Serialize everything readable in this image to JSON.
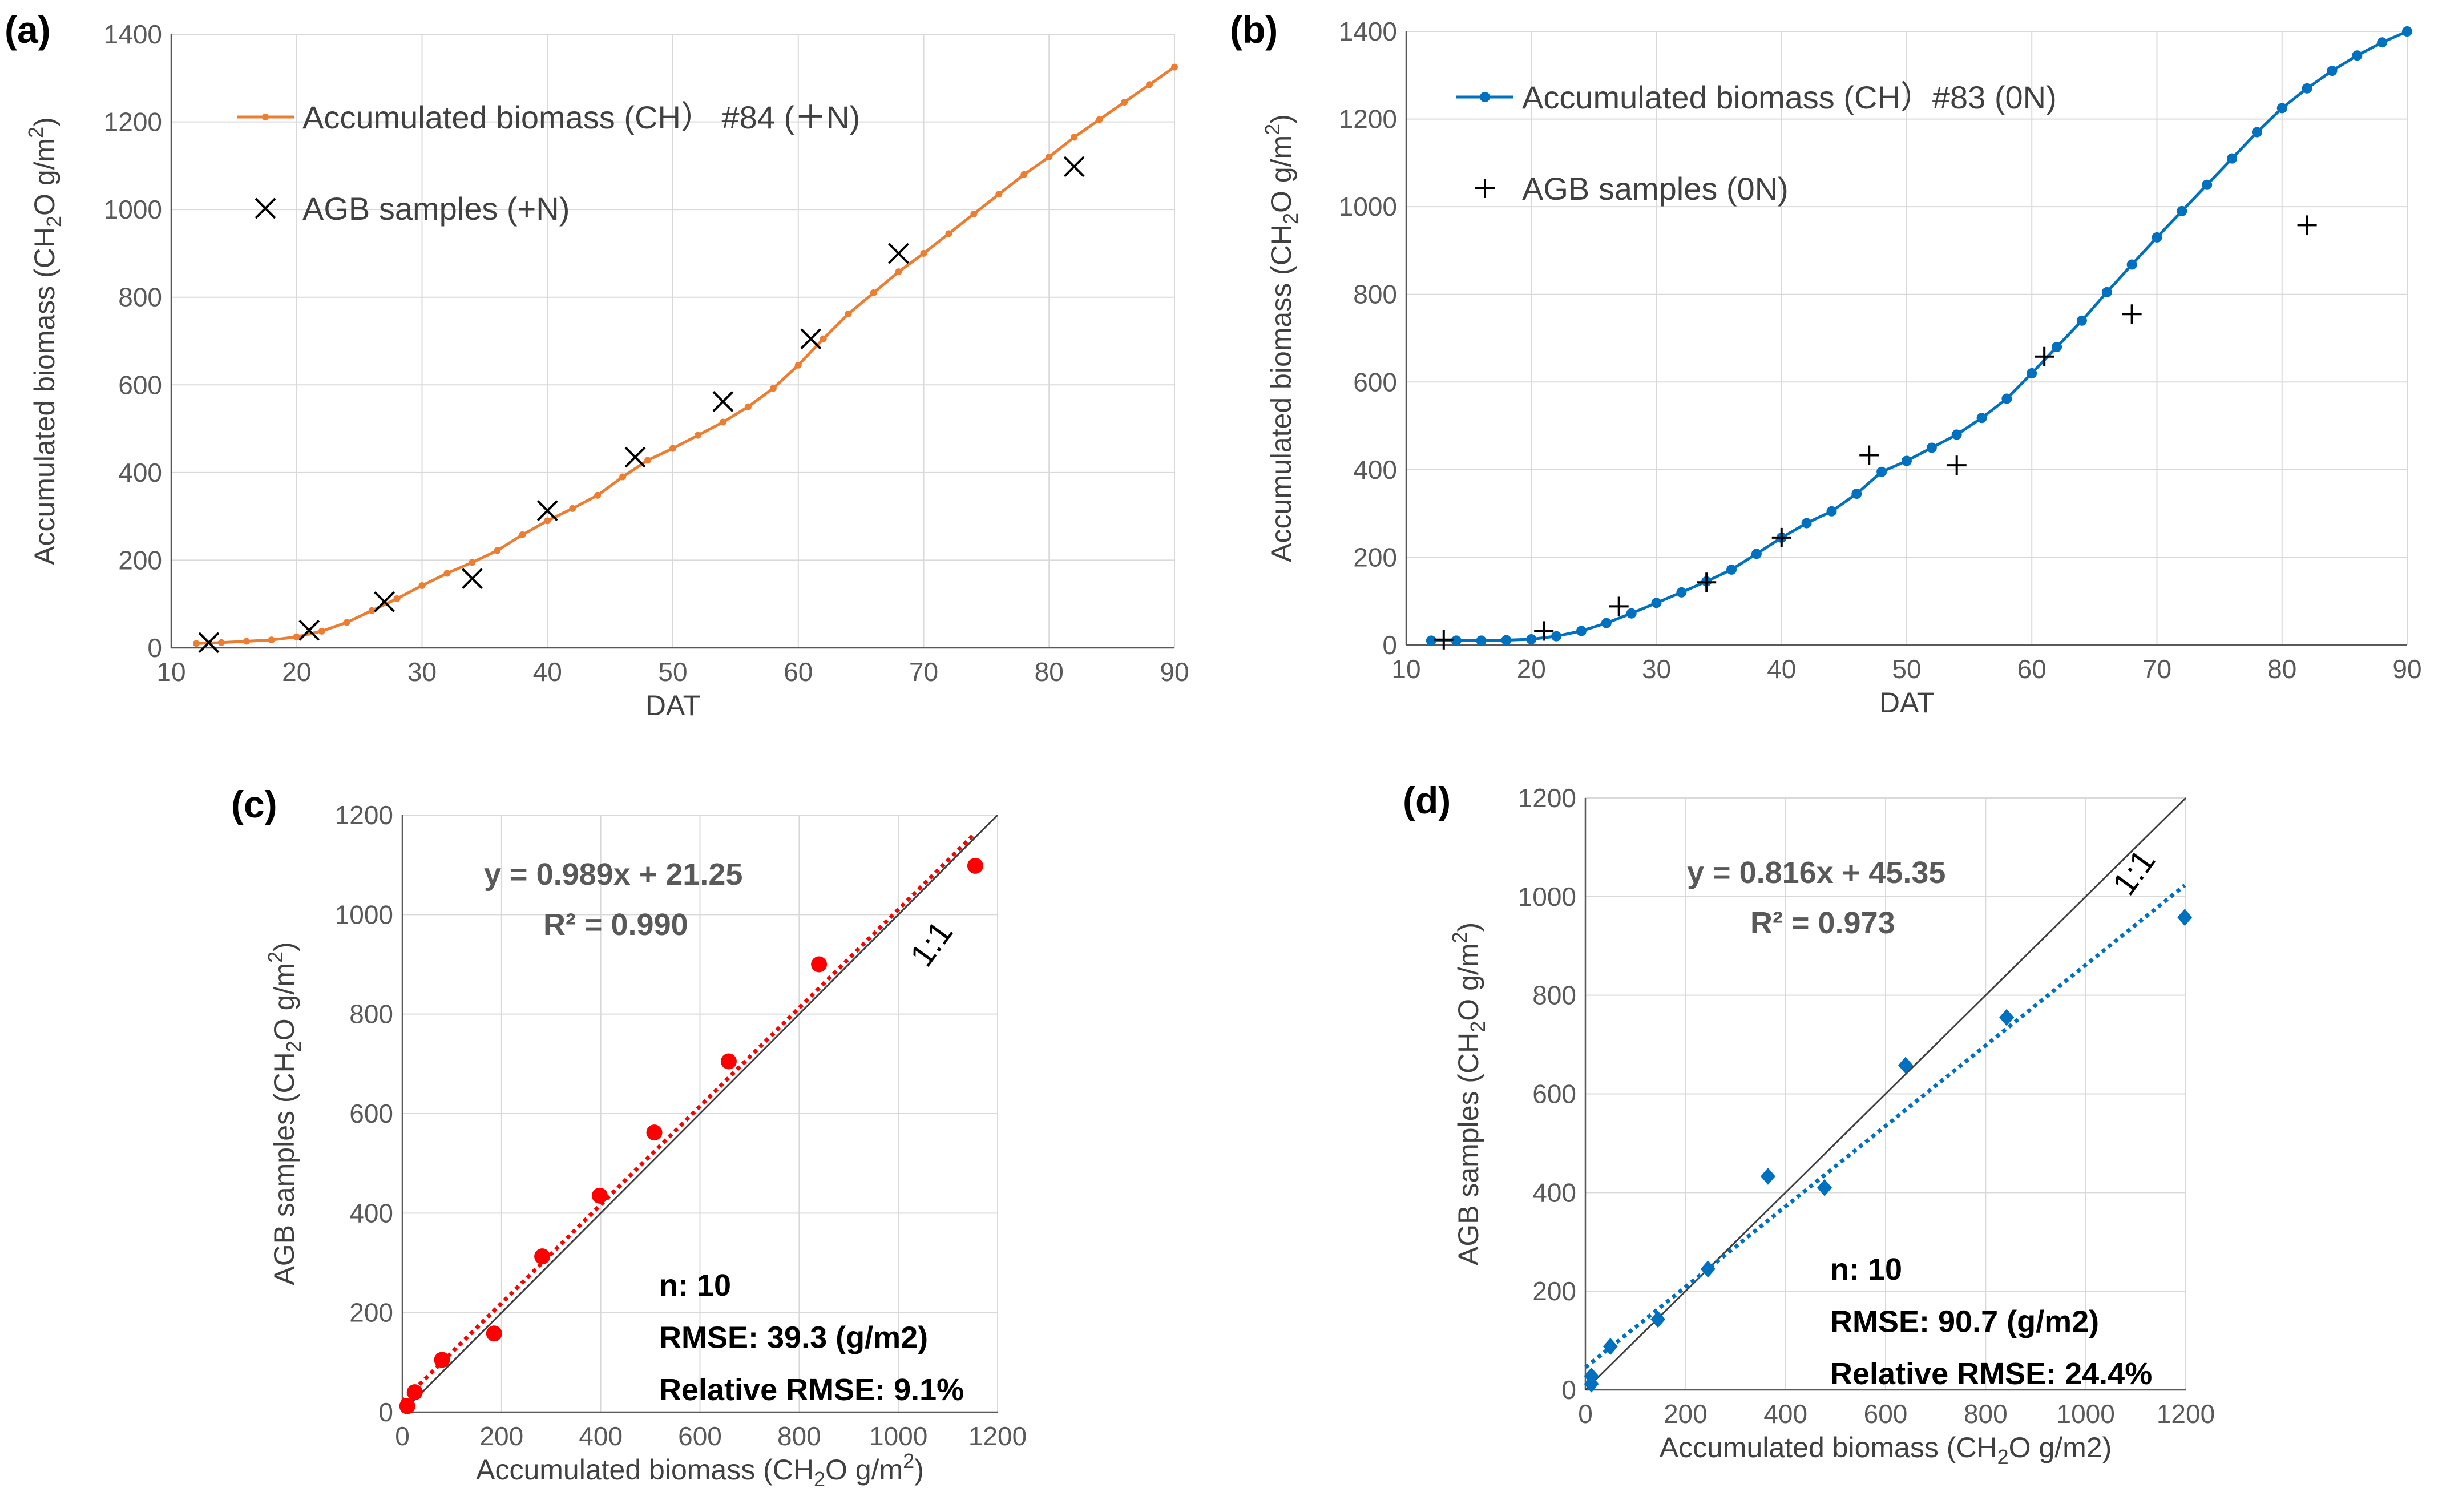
{
  "colors": {
    "orange": "#ED7D31",
    "blue": "#0070C0",
    "red": "#FF0000",
    "grid": "#D9D9D9",
    "axis": "#595959",
    "one_to_one": "#404040",
    "marker_black": "#000000"
  },
  "chart_data": [
    {
      "id": "a",
      "type": "line",
      "panel_label": "(a)",
      "xlabel": "DAT",
      "ylabel": "Accumulated biomass (CH2O g/m2)",
      "ylabel_parts": {
        "main": "Accumulated biomass (CH",
        "sub": "2",
        "mid": "O g/m",
        "sup": "2",
        "end": ")"
      },
      "xlim": [
        10,
        90
      ],
      "ylim": [
        0,
        1400
      ],
      "xticks": [
        10,
        20,
        30,
        40,
        50,
        60,
        70,
        80,
        90
      ],
      "yticks": [
        0,
        200,
        400,
        600,
        800,
        1000,
        1200,
        1400
      ],
      "grid": true,
      "legend_position": "top-left",
      "series": [
        {
          "name": "Accumulated biomass (CH） #84 (＋N)",
          "kind": "line-markers",
          "color": "#ED7D31",
          "x": [
            12,
            14,
            16,
            18,
            20,
            22,
            24,
            26,
            28,
            30,
            32,
            34,
            36,
            38,
            40,
            42,
            44,
            46,
            48,
            50,
            52,
            54,
            56,
            58,
            60,
            62,
            64,
            66,
            68,
            70,
            72,
            74,
            76,
            78,
            80,
            82,
            84,
            86,
            88,
            90
          ],
          "y": [
            10,
            12,
            15,
            18,
            25,
            38,
            58,
            85,
            112,
            142,
            170,
            195,
            222,
            258,
            290,
            318,
            348,
            390,
            428,
            455,
            485,
            515,
            550,
            592,
            645,
            705,
            762,
            810,
            858,
            900,
            945,
            990,
            1035,
            1080,
            1120,
            1165,
            1205,
            1245,
            1285,
            1325
          ]
        },
        {
          "name": "AGB  samples (+N)",
          "kind": "x-markers",
          "color": "#000000",
          "x": [
            13,
            21,
            27,
            34,
            40,
            47,
            54,
            61,
            68,
            82
          ],
          "y": [
            12,
            40,
            105,
            158,
            313,
            435,
            562,
            705,
            900,
            1098
          ]
        }
      ]
    },
    {
      "id": "b",
      "type": "line",
      "panel_label": "(b)",
      "xlabel": "DAT",
      "ylabel": "Accumulated biomass (CH2O g/m2)",
      "ylabel_parts": {
        "main": "Accumulated biomass (CH",
        "sub": "2",
        "mid": "O g/m",
        "sup": "2",
        "end": ")"
      },
      "xlim": [
        10,
        90
      ],
      "ylim": [
        0,
        1400
      ],
      "xticks": [
        10,
        20,
        30,
        40,
        50,
        60,
        70,
        80,
        90
      ],
      "yticks": [
        0,
        200,
        400,
        600,
        800,
        1000,
        1200,
        1400
      ],
      "grid": true,
      "legend_position": "top-left",
      "series": [
        {
          "name": "Accumulated biomass (CH）#83 (0N)",
          "kind": "line-markers",
          "color": "#0070C0",
          "x": [
            12,
            14,
            16,
            18,
            20,
            22,
            24,
            26,
            28,
            30,
            32,
            34,
            36,
            38,
            40,
            42,
            44,
            46,
            48,
            50,
            52,
            54,
            56,
            58,
            60,
            62,
            64,
            66,
            68,
            70,
            72,
            74,
            76,
            78,
            80,
            82,
            84,
            86,
            88,
            90
          ],
          "y": [
            10,
            10,
            10,
            11,
            13,
            20,
            32,
            50,
            72,
            96,
            120,
            145,
            172,
            208,
            245,
            278,
            305,
            345,
            395,
            420,
            450,
            480,
            518,
            562,
            620,
            680,
            740,
            805,
            868,
            930,
            990,
            1050,
            1110,
            1170,
            1225,
            1270,
            1310,
            1345,
            1375,
            1400
          ]
        },
        {
          "name": "AGB  samples (0N)",
          "kind": "plus-markers",
          "color": "#000000",
          "x": [
            13,
            21,
            27,
            34,
            40,
            47,
            54,
            61,
            68,
            82
          ],
          "y": [
            12,
            32,
            88,
            143,
            245,
            433,
            410,
            658,
            755,
            958
          ]
        }
      ]
    },
    {
      "id": "c",
      "type": "scatter",
      "panel_label": "(c)",
      "xlabel": "Accumulated biomass (CH2O g/m2)",
      "xlabel_parts": {
        "main": "Accumulated biomass (CH",
        "sub": "2",
        "mid": "O g/m",
        "sup": "2",
        "end": ")"
      },
      "ylabel": "AGB samples (CH2O g/m2)",
      "ylabel_parts": {
        "main": "AGB samples (CH",
        "sub": "2",
        "mid": "O g/m",
        "sup": "2",
        "end": ")"
      },
      "xlim": [
        0,
        1200
      ],
      "ylim": [
        0,
        1200
      ],
      "xticks": [
        0,
        200,
        400,
        600,
        800,
        1000,
        1200
      ],
      "yticks": [
        0,
        200,
        400,
        600,
        800,
        1000,
        1200
      ],
      "grid": true,
      "marker": "circle",
      "color": "#FF0000",
      "points": {
        "x": [
          10,
          25,
          80,
          185,
          282,
          398,
          508,
          658,
          840,
          1155
        ],
        "y": [
          12,
          40,
          105,
          158,
          313,
          435,
          562,
          705,
          900,
          1098
        ]
      },
      "trendline": {
        "slope": 0.989,
        "intercept": 21.25,
        "x_range": [
          0,
          1155
        ]
      },
      "one_to_one": {
        "x_range": [
          0,
          1200
        ],
        "label": "1:1"
      },
      "equation": "y = 0.989x + 21.25",
      "r2": "R² = 0.990",
      "stats": [
        "n: 10",
        "RMSE: 39.3 (g/m2)",
        "Relative RMSE:  9.1%"
      ]
    },
    {
      "id": "d",
      "type": "scatter",
      "panel_label": "(d)",
      "xlabel": "Accumulated biomass (CH2O g/m2)",
      "xlabel_parts": {
        "main": "Accumulated biomass (CH",
        "sub": "2",
        "mid": "O g/m2)",
        "sup": "",
        "end": ""
      },
      "ylabel": "AGB samples (CH2O g/m2)",
      "ylabel_parts": {
        "main": "AGB samples (CH",
        "sub": "2",
        "mid": "O g/m",
        "sup": "2",
        "end": ")"
      },
      "xlim": [
        0,
        1200
      ],
      "ylim": [
        0,
        1200
      ],
      "xticks": [
        0,
        200,
        400,
        600,
        800,
        1000,
        1200
      ],
      "yticks": [
        0,
        200,
        400,
        600,
        800,
        1000,
        1200
      ],
      "grid": true,
      "marker": "diamond",
      "color": "#0070C0",
      "points": {
        "x": [
          12,
          50,
          145,
          245,
          365,
          478,
          640,
          842,
          1198,
          12
        ],
        "y": [
          28,
          88,
          143,
          245,
          433,
          410,
          658,
          755,
          958,
          12
        ]
      },
      "trendline": {
        "slope": 0.816,
        "intercept": 45.35,
        "x_range": [
          0,
          1198
        ]
      },
      "one_to_one": {
        "x_range": [
          0,
          1200
        ],
        "label": "1:1"
      },
      "equation": "y = 0.816x + 45.35",
      "r2": "R² = 0.973",
      "stats": [
        "n: 10",
        "RMSE: 90.7 (g/m2)",
        "Relative RMSE:  24.4%"
      ]
    }
  ]
}
